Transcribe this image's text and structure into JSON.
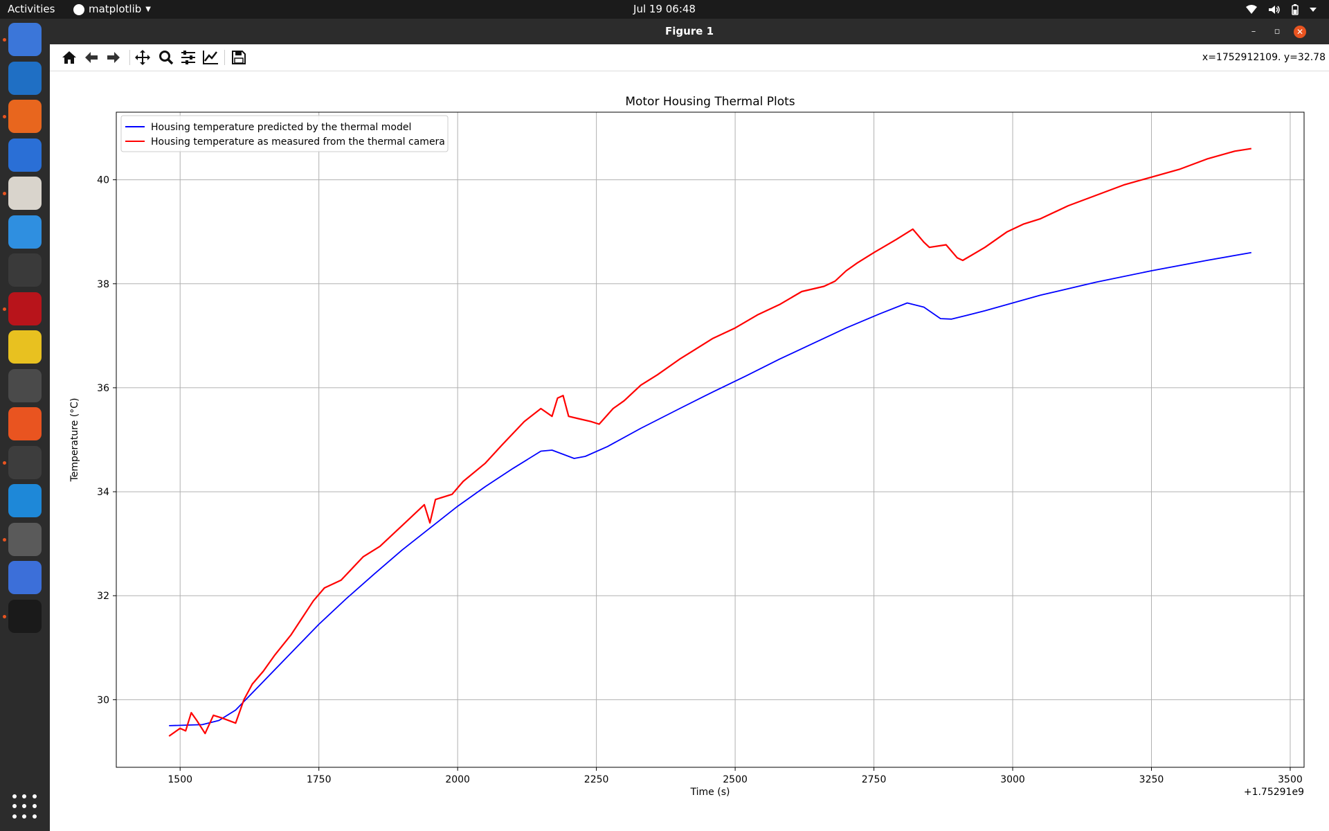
{
  "topbar": {
    "activities": "Activities",
    "app_menu": "matplotlib",
    "clock": "Jul 19  06:48"
  },
  "dock": {
    "apps": [
      {
        "name": "chromium-icon",
        "color": "#3b76d9",
        "running": true
      },
      {
        "name": "writer-icon",
        "color": "#1f6fc4",
        "running": false
      },
      {
        "name": "firefox-icon",
        "color": "#e8661e",
        "running": true
      },
      {
        "name": "thunderbird-icon",
        "color": "#2a6fd6",
        "running": false
      },
      {
        "name": "files-icon",
        "color": "#d9d4cc",
        "running": true
      },
      {
        "name": "help-icon",
        "color": "#2f8fe0",
        "running": false
      },
      {
        "name": "terminal-icon",
        "color": "#3a3a3a",
        "running": false
      },
      {
        "name": "system-monitor-icon",
        "color": "#b8141b",
        "running": true
      },
      {
        "name": "rhythmbox-icon",
        "color": "#e8c120",
        "running": false
      },
      {
        "name": "calculator-icon",
        "color": "#4a4a4a",
        "running": false
      },
      {
        "name": "app-center-icon",
        "color": "#e95420",
        "running": false
      },
      {
        "name": "sublime-text-icon",
        "color": "#3d3d3d",
        "running": true
      },
      {
        "name": "vscode-icon",
        "color": "#1e88d8",
        "running": false
      },
      {
        "name": "settings-icon",
        "color": "#5a5a5a",
        "running": true
      },
      {
        "name": "screenshot-icon",
        "color": "#3c6fd9",
        "running": false
      },
      {
        "name": "unity-icon",
        "color": "#1a1a1a",
        "running": true
      }
    ],
    "show_apps": "show-apps-icon"
  },
  "window": {
    "title": "Figure 1",
    "minimize": "–",
    "maximize": "▫",
    "close": "✕"
  },
  "toolbar": {
    "tools": [
      "home-icon",
      "back-icon",
      "forward-icon",
      "pan-icon",
      "zoom-icon",
      "configure-subplots-icon",
      "edit-axis-icon",
      "save-icon"
    ],
    "coords": "x=1752912109. y=32.78"
  },
  "chart_data": {
    "type": "line",
    "title": "Motor Housing Thermal Plots",
    "xlabel": "Time (s)",
    "ylabel": "Temperature (°C)",
    "x_offset_label": "+1.75291e9",
    "xlim": [
      1385,
      3525
    ],
    "ylim": [
      28.7,
      41.3
    ],
    "xticks": [
      1500,
      1750,
      2000,
      2250,
      2500,
      2750,
      3000,
      3250,
      3500
    ],
    "yticks": [
      30,
      32,
      34,
      36,
      38,
      40
    ],
    "grid": true,
    "legend_position": "upper left",
    "series": [
      {
        "name": "Housing temperature predicted by the thermal model",
        "color": "#0000ff",
        "x": [
          1480,
          1540,
          1570,
          1600,
          1650,
          1700,
          1750,
          1800,
          1850,
          1900,
          1950,
          2000,
          2050,
          2100,
          2150,
          2170,
          2190,
          2210,
          2230,
          2270,
          2330,
          2400,
          2460,
          2520,
          2580,
          2640,
          2700,
          2760,
          2810,
          2840,
          2870,
          2890,
          2950,
          3050,
          3150,
          3250,
          3350,
          3430
        ],
        "y": [
          29.5,
          29.52,
          29.6,
          29.8,
          30.35,
          30.9,
          31.45,
          31.95,
          32.42,
          32.88,
          33.3,
          33.72,
          34.1,
          34.45,
          34.78,
          34.8,
          34.72,
          34.64,
          34.68,
          34.87,
          35.22,
          35.6,
          35.92,
          36.23,
          36.55,
          36.85,
          37.15,
          37.42,
          37.63,
          37.55,
          37.33,
          37.32,
          37.48,
          37.78,
          38.03,
          38.25,
          38.45,
          38.6
        ]
      },
      {
        "name": "Housing temperature as measured from the thermal camera",
        "color": "#ff0000",
        "x": [
          1480,
          1500,
          1510,
          1520,
          1530,
          1545,
          1560,
          1575,
          1600,
          1615,
          1630,
          1650,
          1670,
          1700,
          1740,
          1760,
          1790,
          1830,
          1860,
          1900,
          1940,
          1950,
          1960,
          1990,
          2010,
          2050,
          2080,
          2120,
          2150,
          2170,
          2180,
          2190,
          2200,
          2220,
          2240,
          2255,
          2280,
          2300,
          2330,
          2360,
          2400,
          2430,
          2460,
          2500,
          2540,
          2580,
          2620,
          2660,
          2680,
          2700,
          2720,
          2750,
          2790,
          2820,
          2840,
          2850,
          2880,
          2900,
          2910,
          2950,
          2990,
          3020,
          3050,
          3100,
          3150,
          3200,
          3250,
          3300,
          3350,
          3400,
          3430
        ],
        "y": [
          29.3,
          29.45,
          29.4,
          29.75,
          29.6,
          29.35,
          29.7,
          29.65,
          29.55,
          30.0,
          30.3,
          30.55,
          30.85,
          31.25,
          31.9,
          32.15,
          32.3,
          32.75,
          32.95,
          33.35,
          33.75,
          33.4,
          33.85,
          33.95,
          34.2,
          34.55,
          34.9,
          35.35,
          35.6,
          35.45,
          35.8,
          35.85,
          35.45,
          35.4,
          35.35,
          35.3,
          35.6,
          35.75,
          36.05,
          36.25,
          36.55,
          36.75,
          36.95,
          37.15,
          37.4,
          37.6,
          37.85,
          37.95,
          38.05,
          38.25,
          38.4,
          38.6,
          38.85,
          39.05,
          38.8,
          38.7,
          38.75,
          38.5,
          38.45,
          38.7,
          39.0,
          39.15,
          39.25,
          39.5,
          39.7,
          39.9,
          40.05,
          40.2,
          40.4,
          40.55,
          40.6
        ]
      }
    ]
  }
}
